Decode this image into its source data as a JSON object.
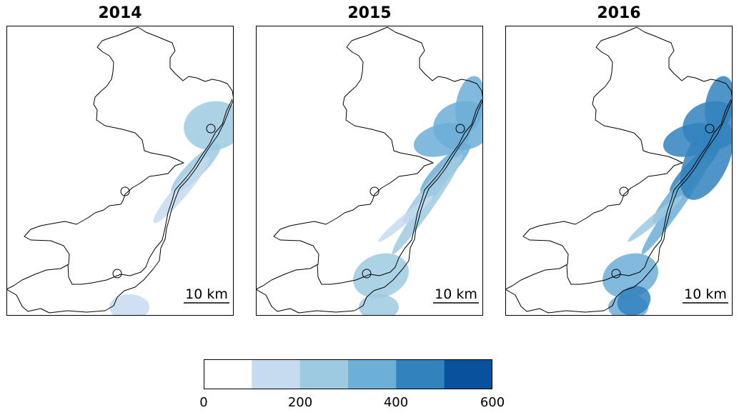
{
  "panels": [
    {
      "title": "2014",
      "intensity": 1
    },
    {
      "title": "2015",
      "intensity": 2
    },
    {
      "title": "2016",
      "intensity": 3
    }
  ],
  "scale_bar": {
    "label": "10 km"
  },
  "colorbar": {
    "colors": [
      "#ffffff",
      "#c6dbef",
      "#9ecae1",
      "#6baed6",
      "#3182bd",
      "#08519c"
    ],
    "ticks": [
      "0",
      "200",
      "400",
      "600"
    ],
    "tick_values": [
      0,
      200,
      400,
      600
    ],
    "range": [
      0,
      600
    ]
  }
}
